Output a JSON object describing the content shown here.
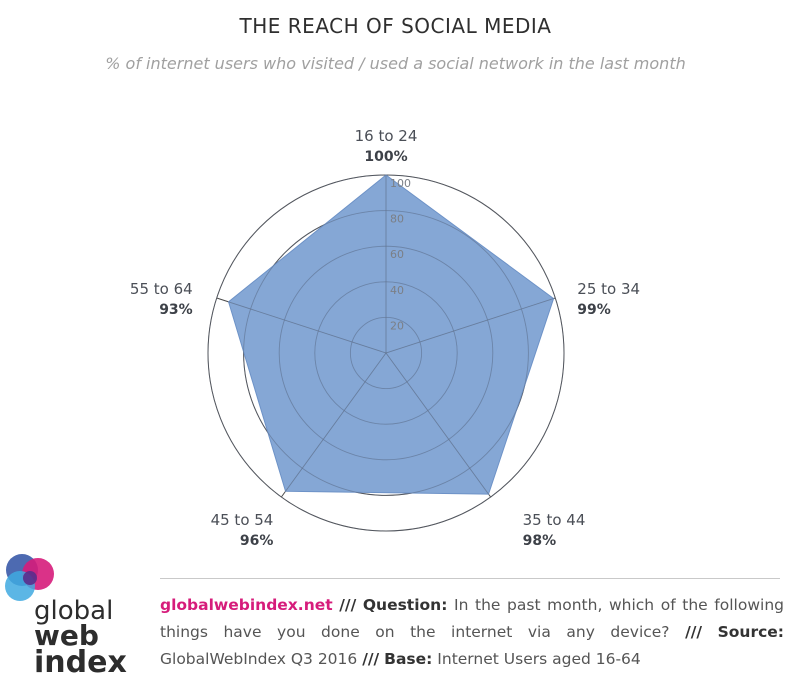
{
  "header": {
    "title": "THE REACH OF SOCIAL MEDIA",
    "subtitle": "% of internet users who visited / used a social network in the last month"
  },
  "chart_data": {
    "type": "radar",
    "categories": [
      "16 to 24",
      "25 to 34",
      "35 to 44",
      "45 to 54",
      "55 to 64"
    ],
    "values": [
      100,
      99,
      98,
      96,
      93
    ],
    "value_labels": [
      "100%",
      "99%",
      "98%",
      "96%",
      "93%"
    ],
    "radial_ticks": [
      20,
      40,
      60,
      80,
      100
    ],
    "rlim": [
      0,
      100
    ],
    "fill_color": "#7b9fd1",
    "grid_color": "#4a4a4a"
  },
  "footer": {
    "site": "globalwebindex.net",
    "separator": "///",
    "question_key": "Question:",
    "question_text": "In the past month, which of the following things have you done on the internet via any device?",
    "source_key": "Source:",
    "source_text": "GlobalWebIndex Q3 2016",
    "base_key": "Base:",
    "base_text": "Internet Users aged 16-64"
  },
  "logo": {
    "line1": "global",
    "line2": "web",
    "line3": "index",
    "colors": [
      "#3a5aa8",
      "#d61c7b",
      "#3fa9e0",
      "#5a2d8c"
    ]
  }
}
